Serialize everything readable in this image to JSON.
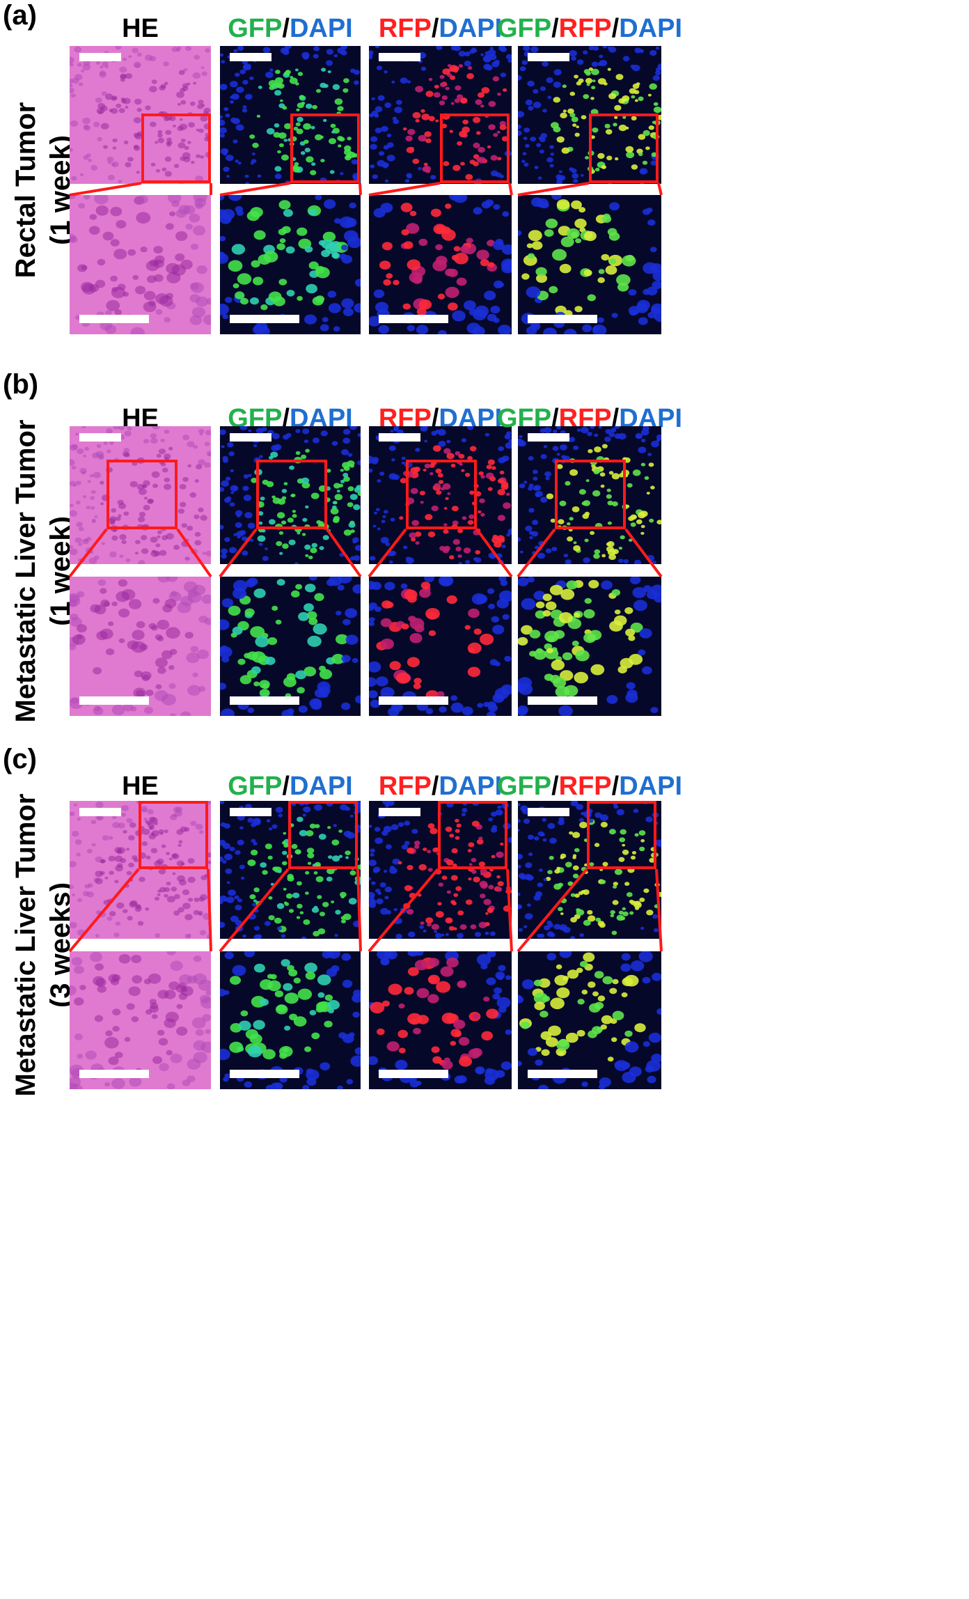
{
  "panels": [
    {
      "letter": "(a)",
      "row_label": [
        "Rectal Tumor",
        "(1 week)"
      ]
    },
    {
      "letter": "(b)",
      "row_label": [
        "Metastatic Liver Tumor",
        "(1 week)"
      ]
    },
    {
      "letter": "(c)",
      "row_label": [
        "Metastatic Liver Tumor",
        "(3 weeks)"
      ]
    }
  ],
  "column_headers": {
    "he": "HE",
    "gfp": "GFP",
    "rfp": "RFP",
    "dapi": "DAPI",
    "sep": "/"
  },
  "colors": {
    "gfp_label": "#22b14c",
    "rfp_label": "#ff2020",
    "dapi_label": "#1f6fd0",
    "roi_box": "#ff1a1a",
    "scale_bar": "#ffffff"
  }
}
